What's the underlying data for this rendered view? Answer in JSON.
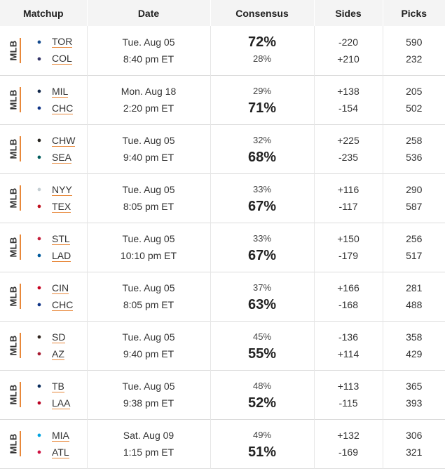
{
  "headers": {
    "matchup": "Matchup",
    "date": "Date",
    "consensus": "Consensus",
    "sides": "Sides",
    "picks": "Picks"
  },
  "league": "MLB",
  "games": [
    {
      "away": {
        "abbr": "TOR",
        "logo": "blue-jays-logo",
        "color": "#134a8e",
        "pct": "72%",
        "side": "-220",
        "picks": "590"
      },
      "home": {
        "abbr": "COL",
        "logo": "rockies-logo",
        "color": "#333366",
        "pct": "28%",
        "side": "+210",
        "picks": "232"
      },
      "day": "Tue. Aug 05",
      "time": "8:40 pm ET",
      "fav": "away"
    },
    {
      "away": {
        "abbr": "MIL",
        "logo": "brewers-logo",
        "color": "#12284b",
        "pct": "29%",
        "side": "+138",
        "picks": "205"
      },
      "home": {
        "abbr": "CHC",
        "logo": "cubs-logo",
        "color": "#0e3386",
        "pct": "71%",
        "side": "-154",
        "picks": "502"
      },
      "day": "Mon. Aug 18",
      "time": "2:20 pm ET",
      "fav": "home"
    },
    {
      "away": {
        "abbr": "CHW",
        "logo": "white-sox-logo",
        "color": "#27251f",
        "pct": "32%",
        "side": "+225",
        "picks": "258"
      },
      "home": {
        "abbr": "SEA",
        "logo": "mariners-logo",
        "color": "#005c5c",
        "pct": "68%",
        "side": "-235",
        "picks": "536"
      },
      "day": "Tue. Aug 05",
      "time": "9:40 pm ET",
      "fav": "home"
    },
    {
      "away": {
        "abbr": "NYY",
        "logo": "yankees-logo",
        "color": "#c4ced3",
        "pct": "33%",
        "side": "+116",
        "picks": "290"
      },
      "home": {
        "abbr": "TEX",
        "logo": "rangers-logo",
        "color": "#c0111f",
        "pct": "67%",
        "side": "-117",
        "picks": "587"
      },
      "day": "Tue. Aug 05",
      "time": "8:05 pm ET",
      "fav": "home"
    },
    {
      "away": {
        "abbr": "STL",
        "logo": "cardinals-logo",
        "color": "#c41e3a",
        "pct": "33%",
        "side": "+150",
        "picks": "256"
      },
      "home": {
        "abbr": "LAD",
        "logo": "dodgers-logo",
        "color": "#005a9c",
        "pct": "67%",
        "side": "-179",
        "picks": "517"
      },
      "day": "Tue. Aug 05",
      "time": "10:10 pm ET",
      "fav": "home"
    },
    {
      "away": {
        "abbr": "CIN",
        "logo": "reds-logo",
        "color": "#c6011f",
        "pct": "37%",
        "side": "+166",
        "picks": "281"
      },
      "home": {
        "abbr": "CHC",
        "logo": "cubs-logo",
        "color": "#0e3386",
        "pct": "63%",
        "side": "-168",
        "picks": "488"
      },
      "day": "Tue. Aug 05",
      "time": "8:05 pm ET",
      "fav": "home"
    },
    {
      "away": {
        "abbr": "SD",
        "logo": "padres-logo",
        "color": "#2f241d",
        "pct": "45%",
        "side": "-136",
        "picks": "358"
      },
      "home": {
        "abbr": "AZ",
        "logo": "diamondbacks-logo",
        "color": "#a71930",
        "pct": "55%",
        "side": "+114",
        "picks": "429"
      },
      "day": "Tue. Aug 05",
      "time": "9:40 pm ET",
      "fav": "home"
    },
    {
      "away": {
        "abbr": "TB",
        "logo": "rays-logo",
        "color": "#092c5c",
        "pct": "48%",
        "side": "+113",
        "picks": "365"
      },
      "home": {
        "abbr": "LAA",
        "logo": "angels-logo",
        "color": "#ba0021",
        "pct": "52%",
        "side": "-115",
        "picks": "393"
      },
      "day": "Tue. Aug 05",
      "time": "9:38 pm ET",
      "fav": "home"
    },
    {
      "away": {
        "abbr": "MIA",
        "logo": "marlins-logo",
        "color": "#00a3e0",
        "pct": "49%",
        "side": "+132",
        "picks": "306"
      },
      "home": {
        "abbr": "ATL",
        "logo": "braves-logo",
        "color": "#ce1141",
        "pct": "51%",
        "side": "-169",
        "picks": "321"
      },
      "day": "Sat. Aug 09",
      "time": "1:15 pm ET",
      "fav": "home"
    }
  ]
}
